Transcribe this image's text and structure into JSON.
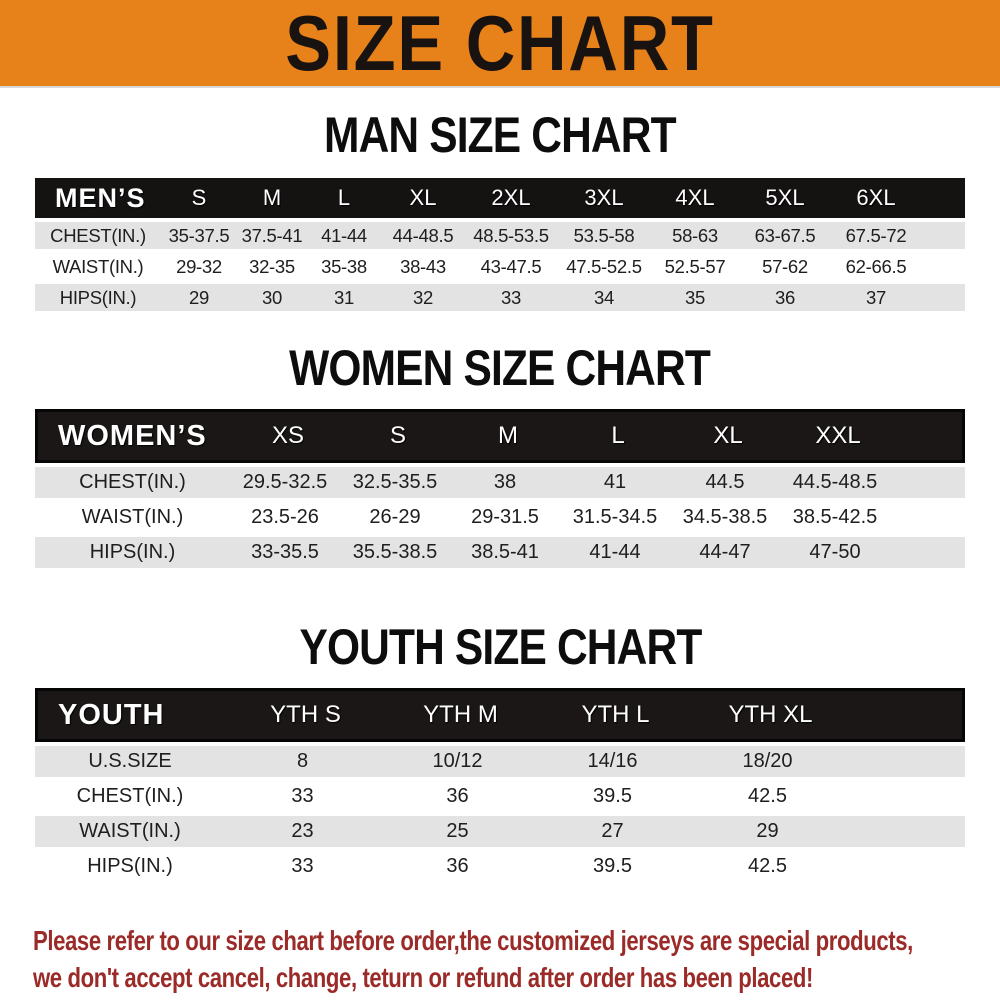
{
  "banner": {
    "title": "SIZE CHART"
  },
  "colors": {
    "banner_bg": "#E7811A",
    "header_bar": "#1C1717",
    "row_gray": "#E4E3E3",
    "footer_red": "#9B2B28"
  },
  "man": {
    "heading": "MAN SIZE CHART",
    "group_label": "MEN’S",
    "columns": [
      "S",
      "M",
      "L",
      "XL",
      "2XL",
      "3XL",
      "4XL",
      "5XL",
      "6XL"
    ],
    "rows": [
      {
        "label": "CHEST(IN.)",
        "values": [
          "35-37.5",
          "37.5-41",
          "41-44",
          "44-48.5",
          "48.5-53.5",
          "53.5-58",
          "58-63",
          "63-67.5",
          "67.5-72"
        ]
      },
      {
        "label": "WAIST(IN.)",
        "values": [
          "29-32",
          "32-35",
          "35-38",
          "38-43",
          "43-47.5",
          "47.5-52.5",
          "52.5-57",
          "57-62",
          "62-66.5"
        ]
      },
      {
        "label": "HIPS(IN.)",
        "values": [
          "29",
          "30",
          "31",
          "32",
          "33",
          "34",
          "35",
          "36",
          "37"
        ]
      }
    ]
  },
  "women": {
    "heading": "WOMEN SIZE CHART",
    "group_label": "WOMEN’S",
    "columns": [
      "XS",
      "S",
      "M",
      "L",
      "XL",
      "XXL"
    ],
    "rows": [
      {
        "label": "CHEST(IN.)",
        "values": [
          "29.5-32.5",
          "32.5-35.5",
          "38",
          "41",
          "44.5",
          "44.5-48.5"
        ]
      },
      {
        "label": "WAIST(IN.)",
        "values": [
          "23.5-26",
          "26-29",
          "29-31.5",
          "31.5-34.5",
          "34.5-38.5",
          "38.5-42.5"
        ]
      },
      {
        "label": "HIPS(IN.)",
        "values": [
          "33-35.5",
          "35.5-38.5",
          "38.5-41",
          "41-44",
          "44-47",
          "47-50"
        ]
      }
    ]
  },
  "youth": {
    "heading": "YOUTH SIZE CHART",
    "group_label": "YOUTH",
    "columns": [
      "YTH S",
      "YTH M",
      "YTH L",
      "YTH XL"
    ],
    "rows": [
      {
        "label": "U.S.SIZE",
        "values": [
          "8",
          "10/12",
          "14/16",
          "18/20"
        ]
      },
      {
        "label": "CHEST(IN.)",
        "values": [
          "33",
          "36",
          "39.5",
          "42.5"
        ]
      },
      {
        "label": "WAIST(IN.)",
        "values": [
          "23",
          "25",
          "27",
          "29"
        ]
      },
      {
        "label": "HIPS(IN.)",
        "values": [
          "33",
          "36",
          "39.5",
          "42.5"
        ]
      }
    ]
  },
  "footer": {
    "line1": "Please refer to our size chart before order,the customized jerseys are special products,",
    "line2": "we don't accept cancel, change, teturn or refund after order has been placed!"
  }
}
